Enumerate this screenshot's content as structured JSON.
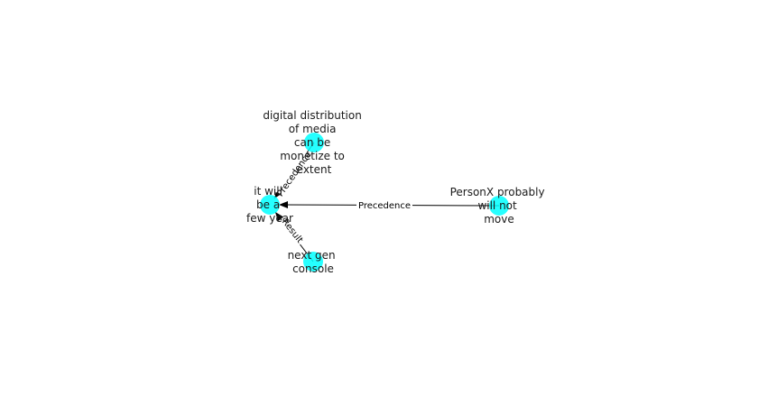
{
  "diagram": {
    "nodes": [
      {
        "id": "center",
        "lines": [
          "it will",
          "be a",
          "few year"
        ]
      },
      {
        "id": "digital",
        "lines": [
          "digital distribution",
          "of media",
          "can be",
          "monetize to",
          "extent"
        ]
      },
      {
        "id": "personx",
        "lines": [
          "PersonX probably",
          "will not",
          "move"
        ]
      },
      {
        "id": "nextgen",
        "lines": [
          "next gen",
          "console"
        ]
      }
    ],
    "edges": [
      {
        "from": "digital",
        "to": "center",
        "label": "Precedence"
      },
      {
        "from": "personx",
        "to": "center",
        "label": "Precedence"
      },
      {
        "from": "nextgen",
        "to": "center",
        "label": "Result"
      }
    ],
    "node_color": "#00ffff"
  }
}
